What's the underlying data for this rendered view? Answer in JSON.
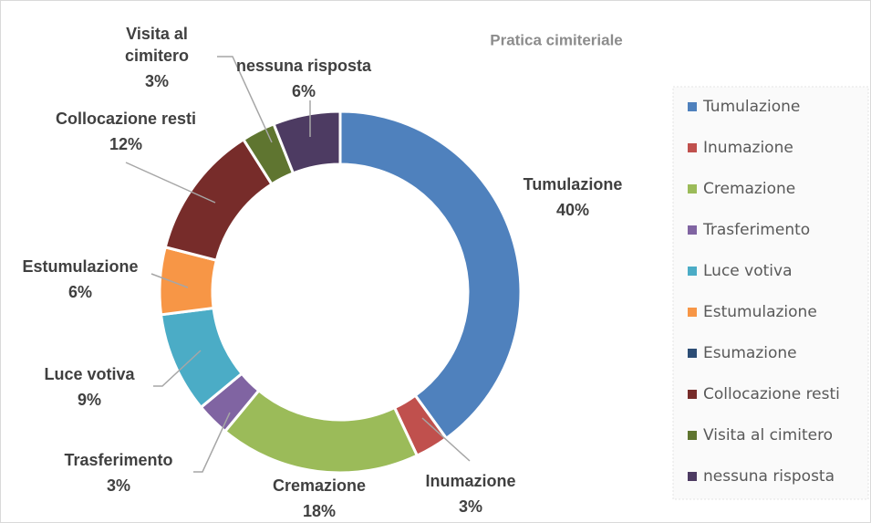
{
  "chart_data": {
    "type": "donut",
    "title": "Pratica cimiteriale",
    "categories": [
      "Tumulazione",
      "Inumazione",
      "Cremazione",
      "Trasferimento",
      "Luce votiva",
      "Estumulazione",
      "Esumazione",
      "Collocazione resti",
      "Visita al cimitero",
      "nessuna risposta"
    ],
    "values": [
      40,
      3,
      18,
      3,
      9,
      6,
      0,
      12,
      3,
      6
    ],
    "value_labels": [
      "40%",
      "3%",
      "18%",
      "3%",
      "9%",
      "6%",
      null,
      "12%",
      "3%",
      "6%"
    ],
    "colors": [
      "#4f81bd",
      "#c0504d",
      "#9bbb59",
      "#8064a2",
      "#4bacc6",
      "#f79646",
      "#2c4d75",
      "#772c2a",
      "#5f7530",
      "#4d3b62"
    ],
    "legend": "right"
  }
}
